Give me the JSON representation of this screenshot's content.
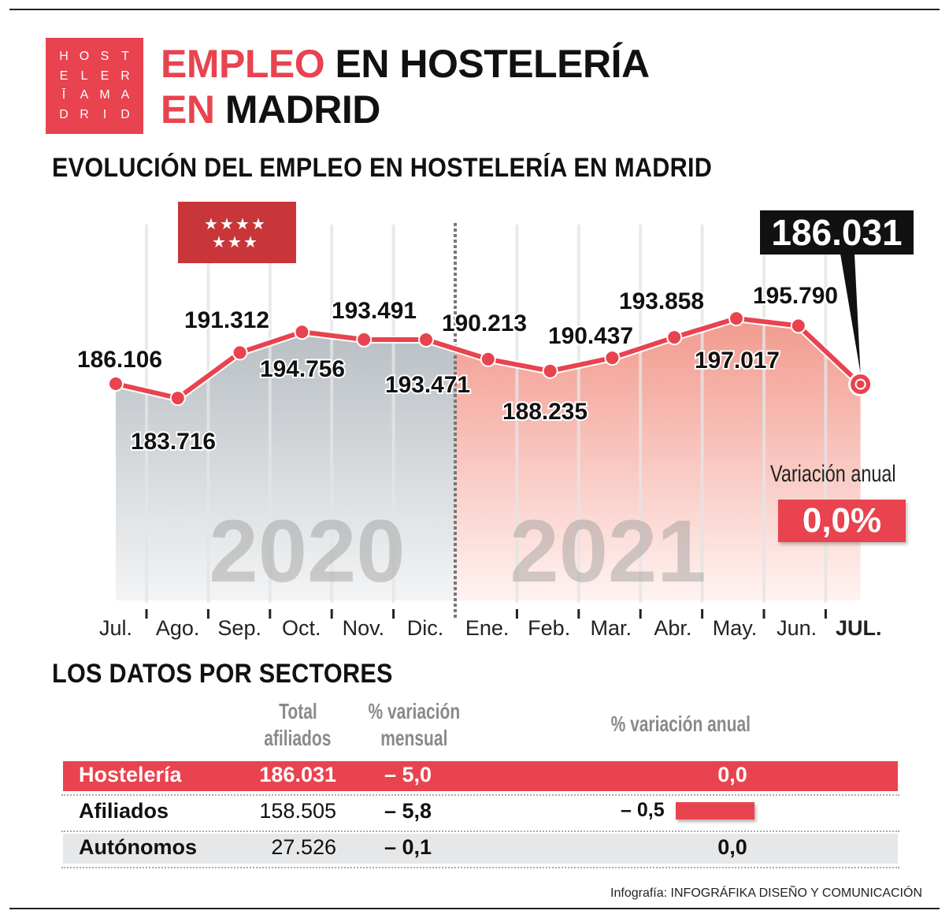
{
  "logo": {
    "rows": [
      [
        "H",
        "O",
        "S",
        "T"
      ],
      [
        "E",
        "L",
        "E",
        "R"
      ],
      [
        "Ī",
        "A",
        "M",
        "A"
      ],
      [
        "D",
        "R",
        "I",
        "D"
      ]
    ]
  },
  "header": {
    "title_red": "EMPLEO",
    "title_black_1": " EN HOSTELERÍA",
    "title_red_2": "EN",
    "title_black_2": " MADRID"
  },
  "chart_title": "EVOLUCIÓN DEL EMPLEO EN HOSTELERÍA EN MADRID",
  "colors": {
    "accent": "#e8434f",
    "area_2020": "#c9cdd1",
    "area_2021": "#f4a89d",
    "dark": "#111111"
  },
  "chart_data": {
    "type": "line",
    "categories": [
      "Jul.",
      "Ago.",
      "Sep.",
      "Oct.",
      "Nov.",
      "Dic.",
      "Ene.",
      "Feb.",
      "Mar.",
      "Abr.",
      "May.",
      "Jun.",
      "JUL."
    ],
    "values": [
      186106,
      183716,
      191312,
      194756,
      193491,
      193471,
      190213,
      188235,
      190437,
      193858,
      197017,
      195790,
      186031
    ],
    "data_labels": [
      "186.106",
      "183.716",
      "191.312",
      "194.756",
      "193.491",
      "193.471",
      "190.213",
      "188.235",
      "190.437",
      "193.858",
      "197.017",
      "195.790",
      "186.031"
    ],
    "year_labels": [
      "2020",
      "2021"
    ],
    "ylim": [
      150000,
      200000
    ],
    "grid": true,
    "flag": "Comunidad de Madrid"
  },
  "annual_variation": {
    "label": "Variación anual",
    "value": "0,0%"
  },
  "sectors": {
    "title": "LOS DATOS POR SECTORES",
    "headers": {
      "total": [
        "Total",
        "afiliados"
      ],
      "monthly": [
        "% variación",
        "mensual"
      ],
      "annual": "% variación anual"
    },
    "rows": [
      {
        "name": "Hostelería",
        "total": "186.031",
        "monthly": "– 5,0",
        "annual": "0,0",
        "annual_value": 0.0
      },
      {
        "name": "Afiliados",
        "total": "158.505",
        "monthly": "– 5,8",
        "annual": "– 0,5",
        "annual_value": -0.5
      },
      {
        "name": "Autónomos",
        "total": "27.526",
        "monthly": "– 0,1",
        "annual": "0,0",
        "annual_value": 0.0
      }
    ]
  },
  "credit": {
    "prefix": "Infografía: ",
    "name": "INFOGRÁFIKA DISEÑO Y COMUNICACIÓN"
  }
}
